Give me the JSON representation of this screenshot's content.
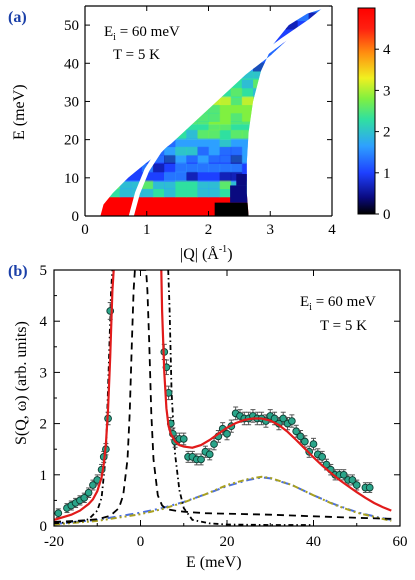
{
  "chart_data": [
    {
      "panel": "(a)",
      "type": "heatmap",
      "annotation": {
        "line1_main": "E",
        "line1_sub": "i",
        "line1_rest": " = 60 meV",
        "line2": "T = 5 K"
      },
      "xlabel_main": "|Q| (Å",
      "xlabel_sup": "-1",
      "xlabel_close": ")",
      "ylabel": "E (meV)",
      "xlim": [
        0,
        4
      ],
      "ylim": [
        0,
        55
      ],
      "xticks": [
        0,
        1,
        2,
        3,
        4
      ],
      "yticks": [
        0,
        10,
        20,
        30,
        40,
        50
      ],
      "colorbar": {
        "ticks": [
          0,
          1,
          2,
          3,
          4
        ],
        "range": [
          0,
          5
        ],
        "colors": [
          "#000000",
          "#0a0a80",
          "#1e40ff",
          "#2ea0ff",
          "#30e0a0",
          "#80f040",
          "#f0f020",
          "#ff9010",
          "#ff2010",
          "#ff0000"
        ]
      },
      "intensity_bands": [
        {
          "e_range": [
            0,
            5
          ],
          "level": 4.9
        },
        {
          "e_range": [
            5,
            9
          ],
          "level": 2.0
        },
        {
          "e_range": [
            9,
            14
          ],
          "level": 1.2
        },
        {
          "e_range": [
            14,
            20
          ],
          "level": 1.6
        },
        {
          "e_range": [
            20,
            24
          ],
          "level": 2.3
        },
        {
          "e_range": [
            24,
            31
          ],
          "level": 2.6
        },
        {
          "e_range": [
            31,
            36
          ],
          "level": 2.1
        },
        {
          "e_range": [
            36,
            45
          ],
          "level": 1.4
        },
        {
          "e_range": [
            45,
            55
          ],
          "level": 1.0
        }
      ]
    },
    {
      "panel": "(b)",
      "type": "line",
      "annotation": {
        "line1_main": "E",
        "line1_sub": "i",
        "line1_rest": " = 60 meV",
        "line2": "T = 5 K"
      },
      "xlabel": "E (meV)",
      "ylabel": "S(Q, ω) (arb. units)",
      "xlim": [
        -20,
        60
      ],
      "ylim": [
        0,
        5
      ],
      "xticks": [
        -20,
        0,
        20,
        40,
        60
      ],
      "yticks": [
        0,
        1,
        2,
        3,
        4,
        5
      ],
      "points": {
        "x": [
          -19,
          -17,
          -16,
          -15,
          -14,
          -13,
          -12,
          -11,
          -10,
          -9,
          -8.5,
          -8,
          -7.5,
          -7,
          5.5,
          6,
          6.5,
          7,
          7.5,
          8,
          9,
          10,
          11,
          12,
          13,
          14,
          15,
          16,
          17,
          18,
          19,
          20,
          21,
          22,
          23,
          24,
          25,
          26,
          27,
          28,
          29,
          30,
          31,
          32,
          33,
          34,
          35,
          36,
          37,
          38,
          39,
          40,
          41,
          42,
          43,
          44,
          45,
          46,
          47,
          48,
          49,
          50,
          52,
          53
        ],
        "y": [
          0.25,
          0.35,
          0.4,
          0.45,
          0.5,
          0.55,
          0.65,
          0.8,
          0.9,
          1.1,
          1.35,
          1.5,
          2.1,
          4.2,
          3.4,
          3.1,
          2.6,
          2.0,
          1.8,
          1.65,
          1.7,
          1.7,
          1.35,
          1.35,
          1.3,
          1.3,
          1.45,
          1.4,
          1.6,
          1.75,
          1.9,
          1.8,
          1.95,
          2.2,
          2.15,
          2.1,
          2.1,
          2.15,
          2.1,
          2.1,
          2.05,
          2.15,
          2.1,
          2.0,
          2.1,
          2.0,
          2.05,
          1.85,
          1.75,
          1.65,
          1.45,
          1.6,
          1.4,
          1.35,
          1.2,
          1.1,
          1.0,
          1.0,
          1.0,
          0.9,
          0.9,
          0.8,
          0.75,
          0.75
        ]
      },
      "fit_total": {
        "x": [
          -20,
          -16,
          -14,
          -12,
          -11,
          -10,
          -9,
          -8.5,
          -8,
          -7.5,
          -7,
          -6.5,
          -6.2,
          4.8,
          5.0,
          5.5,
          6,
          6.5,
          7,
          8,
          9,
          10,
          12,
          14,
          16,
          18,
          20,
          22,
          24,
          26,
          28,
          30,
          32,
          34,
          36,
          38,
          40,
          42,
          44,
          46,
          48,
          50,
          52,
          54,
          56,
          58
        ],
        "y": [
          0.12,
          0.22,
          0.3,
          0.43,
          0.52,
          0.68,
          0.95,
          1.2,
          1.6,
          2.3,
          3.3,
          4.6,
          5.0,
          5.0,
          4.2,
          3.0,
          2.3,
          1.95,
          1.8,
          1.65,
          1.58,
          1.55,
          1.53,
          1.58,
          1.68,
          1.8,
          1.92,
          2.01,
          2.07,
          2.1,
          2.1,
          2.06,
          1.97,
          1.84,
          1.68,
          1.51,
          1.34,
          1.18,
          1.04,
          0.9,
          0.78,
          0.66,
          0.55,
          0.45,
          0.37,
          0.3
        ]
      },
      "fit_elastic": {
        "x": [
          -20,
          -15,
          -10,
          -7,
          -5,
          -4,
          -3,
          -2.5,
          -2,
          -1.6,
          -1.3,
          1.3,
          1.6,
          2,
          2.5,
          3,
          4,
          5,
          6,
          8,
          10,
          15,
          20,
          30,
          40,
          50,
          58
        ],
        "y": [
          0.08,
          0.1,
          0.13,
          0.2,
          0.35,
          0.6,
          1.3,
          2.2,
          3.6,
          4.6,
          5.0,
          5.0,
          4.6,
          3.6,
          2.2,
          1.3,
          0.6,
          0.4,
          0.33,
          0.3,
          0.28,
          0.25,
          0.24,
          0.22,
          0.19,
          0.16,
          0.14
        ]
      },
      "fit_quasielastic": {
        "x": [
          -20,
          -14,
          -12,
          -10,
          -9,
          -8,
          -7.3,
          -6.8,
          -6.5,
          6.4,
          6.7,
          7.2,
          8,
          9,
          10,
          12,
          16,
          20,
          30,
          40
        ],
        "y": [
          0.05,
          0.09,
          0.13,
          0.3,
          0.55,
          1.4,
          3.2,
          4.6,
          5.0,
          5.0,
          4.3,
          2.6,
          1.4,
          0.7,
          0.35,
          0.12,
          0.05,
          0.03,
          0.02,
          0.02
        ]
      },
      "fit_inelastic_blue": {
        "x": [
          -20,
          -10,
          0,
          5,
          10,
          15,
          20,
          25,
          28,
          30,
          35,
          40,
          45,
          50,
          55,
          58
        ],
        "y": [
          0.04,
          0.12,
          0.26,
          0.35,
          0.47,
          0.62,
          0.78,
          0.9,
          0.95,
          0.93,
          0.8,
          0.6,
          0.42,
          0.27,
          0.17,
          0.12
        ]
      },
      "fit_inelastic_olive": {
        "x": [
          -20,
          -10,
          0,
          5,
          10,
          15,
          20,
          25,
          28,
          30,
          35,
          40,
          45,
          50,
          55,
          58
        ],
        "y": [
          0.03,
          0.1,
          0.23,
          0.33,
          0.46,
          0.62,
          0.8,
          0.92,
          0.96,
          0.94,
          0.8,
          0.6,
          0.41,
          0.26,
          0.16,
          0.1
        ]
      },
      "colors": {
        "total": "#e11b1b",
        "elastic": "#000000",
        "quasielastic": "#000000",
        "blue": "#4a6ee0",
        "olive": "#a8a020",
        "marker_fill": "#2aa58a"
      }
    }
  ]
}
